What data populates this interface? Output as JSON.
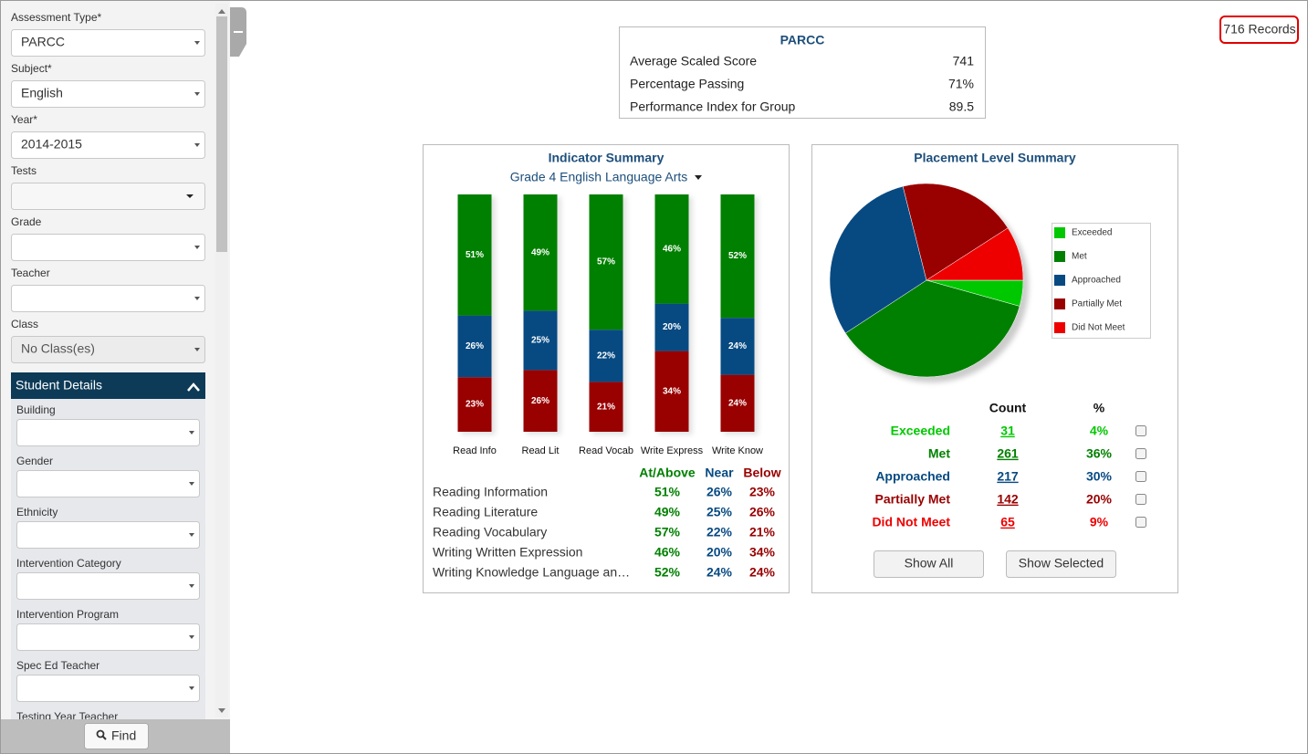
{
  "filters": [
    {
      "label": "Assessment Type*",
      "value": "PARCC"
    },
    {
      "label": "Subject*",
      "value": "English"
    },
    {
      "label": "Year*",
      "value": "2014-2015"
    },
    {
      "label": "Tests"
    },
    {
      "label": "Grade"
    },
    {
      "label": "Teacher"
    },
    {
      "label": "Class",
      "value": "No Class(es)"
    }
  ],
  "student_details": {
    "title": "Student Details",
    "fields": [
      "Building",
      "Gender",
      "Ethnicity",
      "Intervention Category",
      "Intervention Program",
      "Spec Ed Teacher",
      "Testing Year Teacher"
    ]
  },
  "find_button": "Find",
  "records": "716 Records",
  "summary": {
    "title": "PARCC",
    "rows": [
      [
        "Average Scaled Score",
        "741"
      ],
      [
        "Percentage Passing",
        "71%"
      ],
      [
        "Performance Index for Group",
        "89.5"
      ]
    ]
  },
  "indicator_summary": {
    "type": "bar",
    "title": "Indicator Summary",
    "subtitle": "Grade 4 English Language Arts",
    "categories": [
      "Read Info",
      "Read Lit",
      "Read Vocab",
      "Write Express",
      "Write Know"
    ],
    "row_labels": [
      "Reading Information",
      "Reading Literature",
      "Reading Vocabulary",
      "Writing Written Expression",
      "Writing Knowledge Language an…"
    ],
    "series": [
      {
        "name": "At/Above",
        "color": "#008000",
        "values": [
          51,
          49,
          57,
          46,
          52
        ],
        "value_labels": [
          "51%",
          "49%",
          "57%",
          "46%",
          "52%"
        ]
      },
      {
        "name": "Near",
        "color": "#074a82",
        "values": [
          26,
          25,
          22,
          20,
          24
        ],
        "value_labels": [
          "26%",
          "25%",
          "22%",
          "20%",
          "24%"
        ]
      },
      {
        "name": "Below",
        "color": "#990000",
        "values": [
          23,
          26,
          21,
          34,
          24
        ],
        "value_labels": [
          "23%",
          "26%",
          "21%",
          "34%",
          "24%"
        ]
      }
    ]
  },
  "placement_summary": {
    "type": "pie",
    "title": "Placement Level Summary",
    "categories": [
      "Exceeded",
      "Met",
      "Approached",
      "Partially Met",
      "Did Not Meet"
    ],
    "colors": [
      "#00c800",
      "#008000",
      "#074a82",
      "#990000",
      "#ee0000"
    ],
    "count_header": "Count",
    "percent_header": "%",
    "counts": [
      31,
      261,
      217,
      142,
      65
    ],
    "values": [
      4,
      36,
      30,
      20,
      9
    ],
    "value_labels": [
      "4%",
      "36%",
      "30%",
      "20%",
      "9%"
    ],
    "buttons": [
      "Show All",
      "Show Selected"
    ]
  }
}
